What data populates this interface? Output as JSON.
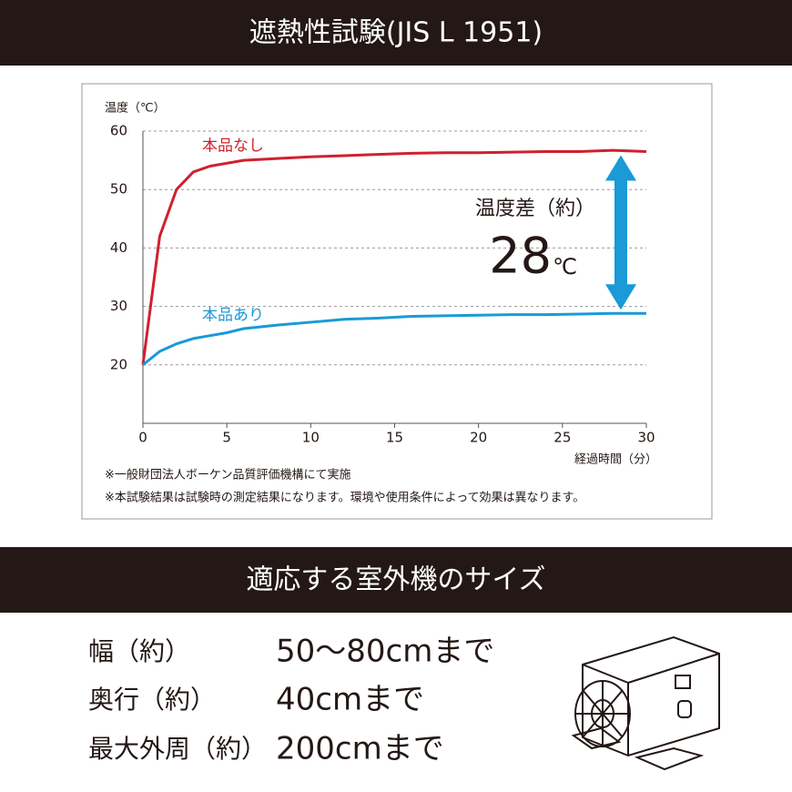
{
  "header": {
    "title": "遮熱性試験(JIS L 1951)"
  },
  "chart_data": {
    "type": "line",
    "y_label": "温度（℃）",
    "x_label": "経過時間（分）",
    "x": [
      0,
      1,
      2,
      3,
      4,
      5,
      6,
      8,
      10,
      12,
      14,
      16,
      18,
      20,
      22,
      24,
      26,
      28,
      30
    ],
    "series": [
      {
        "name": "本品なし",
        "color": "#d0202e",
        "values": [
          20,
          42,
          50,
          53,
          54,
          54.5,
          55,
          55.3,
          55.6,
          55.8,
          56,
          56.2,
          56.3,
          56.3,
          56.4,
          56.5,
          56.5,
          56.7,
          56.5
        ]
      },
      {
        "name": "本品あり",
        "color": "#1a9ad6",
        "values": [
          20,
          22.3,
          23.6,
          24.5,
          25,
          25.5,
          26.2,
          26.8,
          27.3,
          27.8,
          28,
          28.3,
          28.4,
          28.5,
          28.6,
          28.6,
          28.7,
          28.8,
          28.8
        ]
      }
    ],
    "xlim": [
      0,
      30
    ],
    "xticks": [
      0,
      5,
      10,
      15,
      20,
      25,
      30
    ],
    "ylim": [
      10,
      60
    ],
    "yticks": [
      20,
      30,
      40,
      50,
      60
    ],
    "grid": true,
    "annotation": {
      "label": "温度差（約）",
      "value": 28,
      "unit": "℃"
    }
  },
  "notes": [
    "※一般財団法人ボーケン品質評価機構にて実施",
    "※本試験結果は試験時の測定結果になります。環境や使用条件によって効果は異なります。"
  ],
  "section": {
    "title": "適応する室外機のサイズ",
    "rows": [
      [
        "幅（約）",
        "50〜80cmまで"
      ],
      [
        "奥行（約）",
        "40cmまで"
      ],
      [
        "最大外周（約）",
        "200cmまで"
      ]
    ]
  }
}
